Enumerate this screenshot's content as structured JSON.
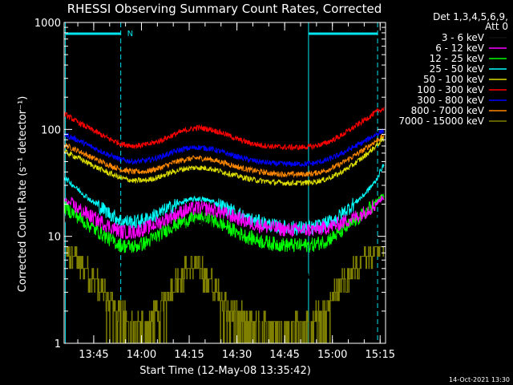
{
  "chart_data": {
    "type": "line",
    "title": "RHESSI Observing Summary Count Rates, Corrected",
    "xlabel": "Start Time (12-May-08 13:35:42)",
    "ylabel": "Corrected Count Rate (s⁻¹ detector⁻¹)",
    "y_scale": "log",
    "ylim": [
      1,
      1000
    ],
    "xlim_minutes": [
      0,
      101
    ],
    "x_ticks": [
      {
        "label": "13:45",
        "minutes": 9.3
      },
      {
        "label": "14:00",
        "minutes": 24.3
      },
      {
        "label": "14:15",
        "minutes": 39.3
      },
      {
        "label": "14:30",
        "minutes": 54.3
      },
      {
        "label": "14:45",
        "minutes": 69.3
      },
      {
        "label": "15:00",
        "minutes": 84.3
      },
      {
        "label": "15:15",
        "minutes": 99.3
      }
    ],
    "y_ticks": [
      {
        "label": "1",
        "value": 1
      },
      {
        "label": "10",
        "value": 10
      },
      {
        "label": "100",
        "value": 100
      },
      {
        "label": "1000",
        "value": 1000
      }
    ],
    "legend_header": [
      "Det 1,3,4,5,6,9,",
      "Att 0"
    ],
    "legend_position": "top-right",
    "timestamp": "14-Oct-2021 13:30",
    "night_marker": "N",
    "colors": {
      "axes": "#ffffff",
      "orbit": "#00e5ee"
    },
    "orbit_lines_minutes": [
      0.4,
      17.8,
      76.8,
      98.5
    ],
    "night_bars_minutes": [
      [
        0.4,
        17.8
      ],
      [
        76.8,
        98.5
      ]
    ],
    "series": [
      {
        "name": "3 - 6 keV",
        "color": "#000000",
        "x": [
          0,
          4,
          9,
          14,
          18,
          22,
          26,
          30,
          34,
          38,
          42,
          46,
          50,
          54,
          58,
          62,
          66,
          70,
          74,
          78,
          82,
          86,
          90,
          94,
          98,
          100
        ],
        "y": [
          15,
          12,
          8.5,
          6,
          4.5,
          4.3,
          5,
          6.5,
          9,
          11.5,
          13,
          12,
          9.5,
          7.5,
          6,
          5,
          4.5,
          4.3,
          4.3,
          4.4,
          5,
          6.5,
          8.5,
          11,
          14,
          16
        ]
      },
      {
        "name": "6 - 12 keV",
        "color": "#ff00ff",
        "x": [
          0,
          4,
          9,
          14,
          18,
          22,
          26,
          30,
          34,
          38,
          42,
          46,
          50,
          54,
          58,
          62,
          66,
          70,
          74,
          78,
          82,
          86,
          90,
          94,
          98,
          100
        ],
        "y": [
          22,
          18.5,
          15,
          12.5,
          11,
          11,
          12,
          13.5,
          15.5,
          17.5,
          18.5,
          18,
          16.5,
          15,
          13.5,
          12.5,
          12,
          11.5,
          11.5,
          11.5,
          12,
          13,
          14.5,
          16.5,
          20,
          23
        ]
      },
      {
        "name": "12 - 25 keV",
        "color": "#00ff00",
        "x": [
          0,
          4,
          9,
          14,
          18,
          22,
          26,
          30,
          34,
          38,
          42,
          46,
          50,
          54,
          58,
          62,
          66,
          70,
          74,
          78,
          82,
          86,
          90,
          94,
          98,
          100
        ],
        "y": [
          19,
          15.5,
          12,
          9.5,
          8.2,
          8,
          8.8,
          10.5,
          12.5,
          14,
          14.8,
          14.2,
          12.8,
          11,
          9.8,
          9,
          8.5,
          8.3,
          8.2,
          8.3,
          9,
          10.5,
          13,
          16,
          21,
          24
        ]
      },
      {
        "name": "25 - 50 keV",
        "color": "#00ffff",
        "x": [
          0,
          4,
          9,
          14,
          18,
          22,
          26,
          30,
          34,
          38,
          42,
          46,
          50,
          54,
          58,
          62,
          66,
          70,
          74,
          78,
          82,
          86,
          90,
          94,
          98,
          100
        ],
        "y": [
          36,
          28,
          21,
          16.5,
          14,
          13.5,
          14.5,
          16.5,
          19,
          21.5,
          22.5,
          21.5,
          19,
          16.5,
          14.5,
          13.5,
          12.5,
          12,
          12,
          12,
          13,
          15,
          19,
          24,
          33,
          45
        ]
      },
      {
        "name": "50 - 100 keV",
        "color": "#dddd00",
        "x": [
          0,
          4,
          9,
          14,
          18,
          22,
          26,
          30,
          34,
          38,
          42,
          46,
          50,
          54,
          58,
          62,
          66,
          70,
          74,
          78,
          82,
          86,
          90,
          94,
          98,
          100
        ],
        "y": [
          62,
          55,
          46,
          39,
          35,
          33,
          33.5,
          36,
          40,
          43,
          44,
          43,
          40,
          37,
          34.5,
          33,
          32,
          31.5,
          31.5,
          32,
          34,
          38,
          45,
          55,
          70,
          80
        ]
      },
      {
        "name": "100 - 300 keV",
        "color": "#ff0000",
        "x": [
          0,
          4,
          9,
          14,
          18,
          22,
          26,
          30,
          34,
          38,
          42,
          46,
          50,
          54,
          58,
          62,
          66,
          70,
          74,
          78,
          82,
          86,
          90,
          94,
          98,
          100
        ],
        "y": [
          140,
          118,
          98,
          82,
          73,
          70,
          72,
          78,
          88,
          98,
          104,
          100,
          92,
          82,
          75,
          71,
          69,
          68,
          68,
          69,
          74,
          84,
          100,
          120,
          145,
          155
        ]
      },
      {
        "name": "300 - 800 keV",
        "color": "#0000ff",
        "x": [
          0,
          4,
          9,
          14,
          18,
          22,
          26,
          30,
          34,
          38,
          42,
          46,
          50,
          54,
          58,
          62,
          66,
          70,
          74,
          78,
          82,
          86,
          90,
          94,
          98,
          100
        ],
        "y": [
          90,
          80,
          68,
          58,
          52,
          50,
          51,
          55,
          61,
          66,
          68,
          66,
          61,
          56,
          52,
          49.5,
          48,
          47.5,
          47.5,
          48,
          51,
          57,
          66,
          76,
          90,
          97
        ]
      },
      {
        "name": "800 - 7000 keV",
        "color": "#ff8800",
        "x": [
          0,
          4,
          9,
          14,
          18,
          22,
          26,
          30,
          34,
          38,
          42,
          46,
          50,
          54,
          58,
          62,
          66,
          70,
          74,
          78,
          82,
          86,
          90,
          94,
          98,
          100
        ],
        "y": [
          72,
          64,
          54,
          46.5,
          42,
          40,
          40.5,
          43.5,
          48.5,
          52.5,
          54,
          52.5,
          49,
          45,
          42,
          40,
          38.5,
          38,
          38,
          38.5,
          41,
          46,
          54,
          64,
          78,
          85
        ]
      },
      {
        "name": "7000 - 15000 keV",
        "color": "#808000",
        "x": [
          0,
          3,
          6,
          9,
          12,
          15,
          18,
          21,
          24,
          27,
          30,
          33,
          36,
          39,
          42,
          45,
          48,
          51,
          54,
          57,
          60,
          63,
          66,
          69,
          72,
          75,
          78,
          81,
          84,
          87,
          90,
          93,
          96,
          98,
          100
        ],
        "y": [
          7.5,
          6.5,
          5,
          4,
          3,
          2.3,
          2,
          1.6,
          1.6,
          1.7,
          2.2,
          3,
          4,
          5,
          5,
          4,
          3,
          2.2,
          2,
          1.7,
          1.6,
          1.6,
          1.6,
          1.6,
          1.6,
          1.6,
          1.7,
          2,
          2.5,
          3.5,
          4.5,
          5.5,
          6.5,
          7.5,
          8
        ]
      }
    ]
  }
}
